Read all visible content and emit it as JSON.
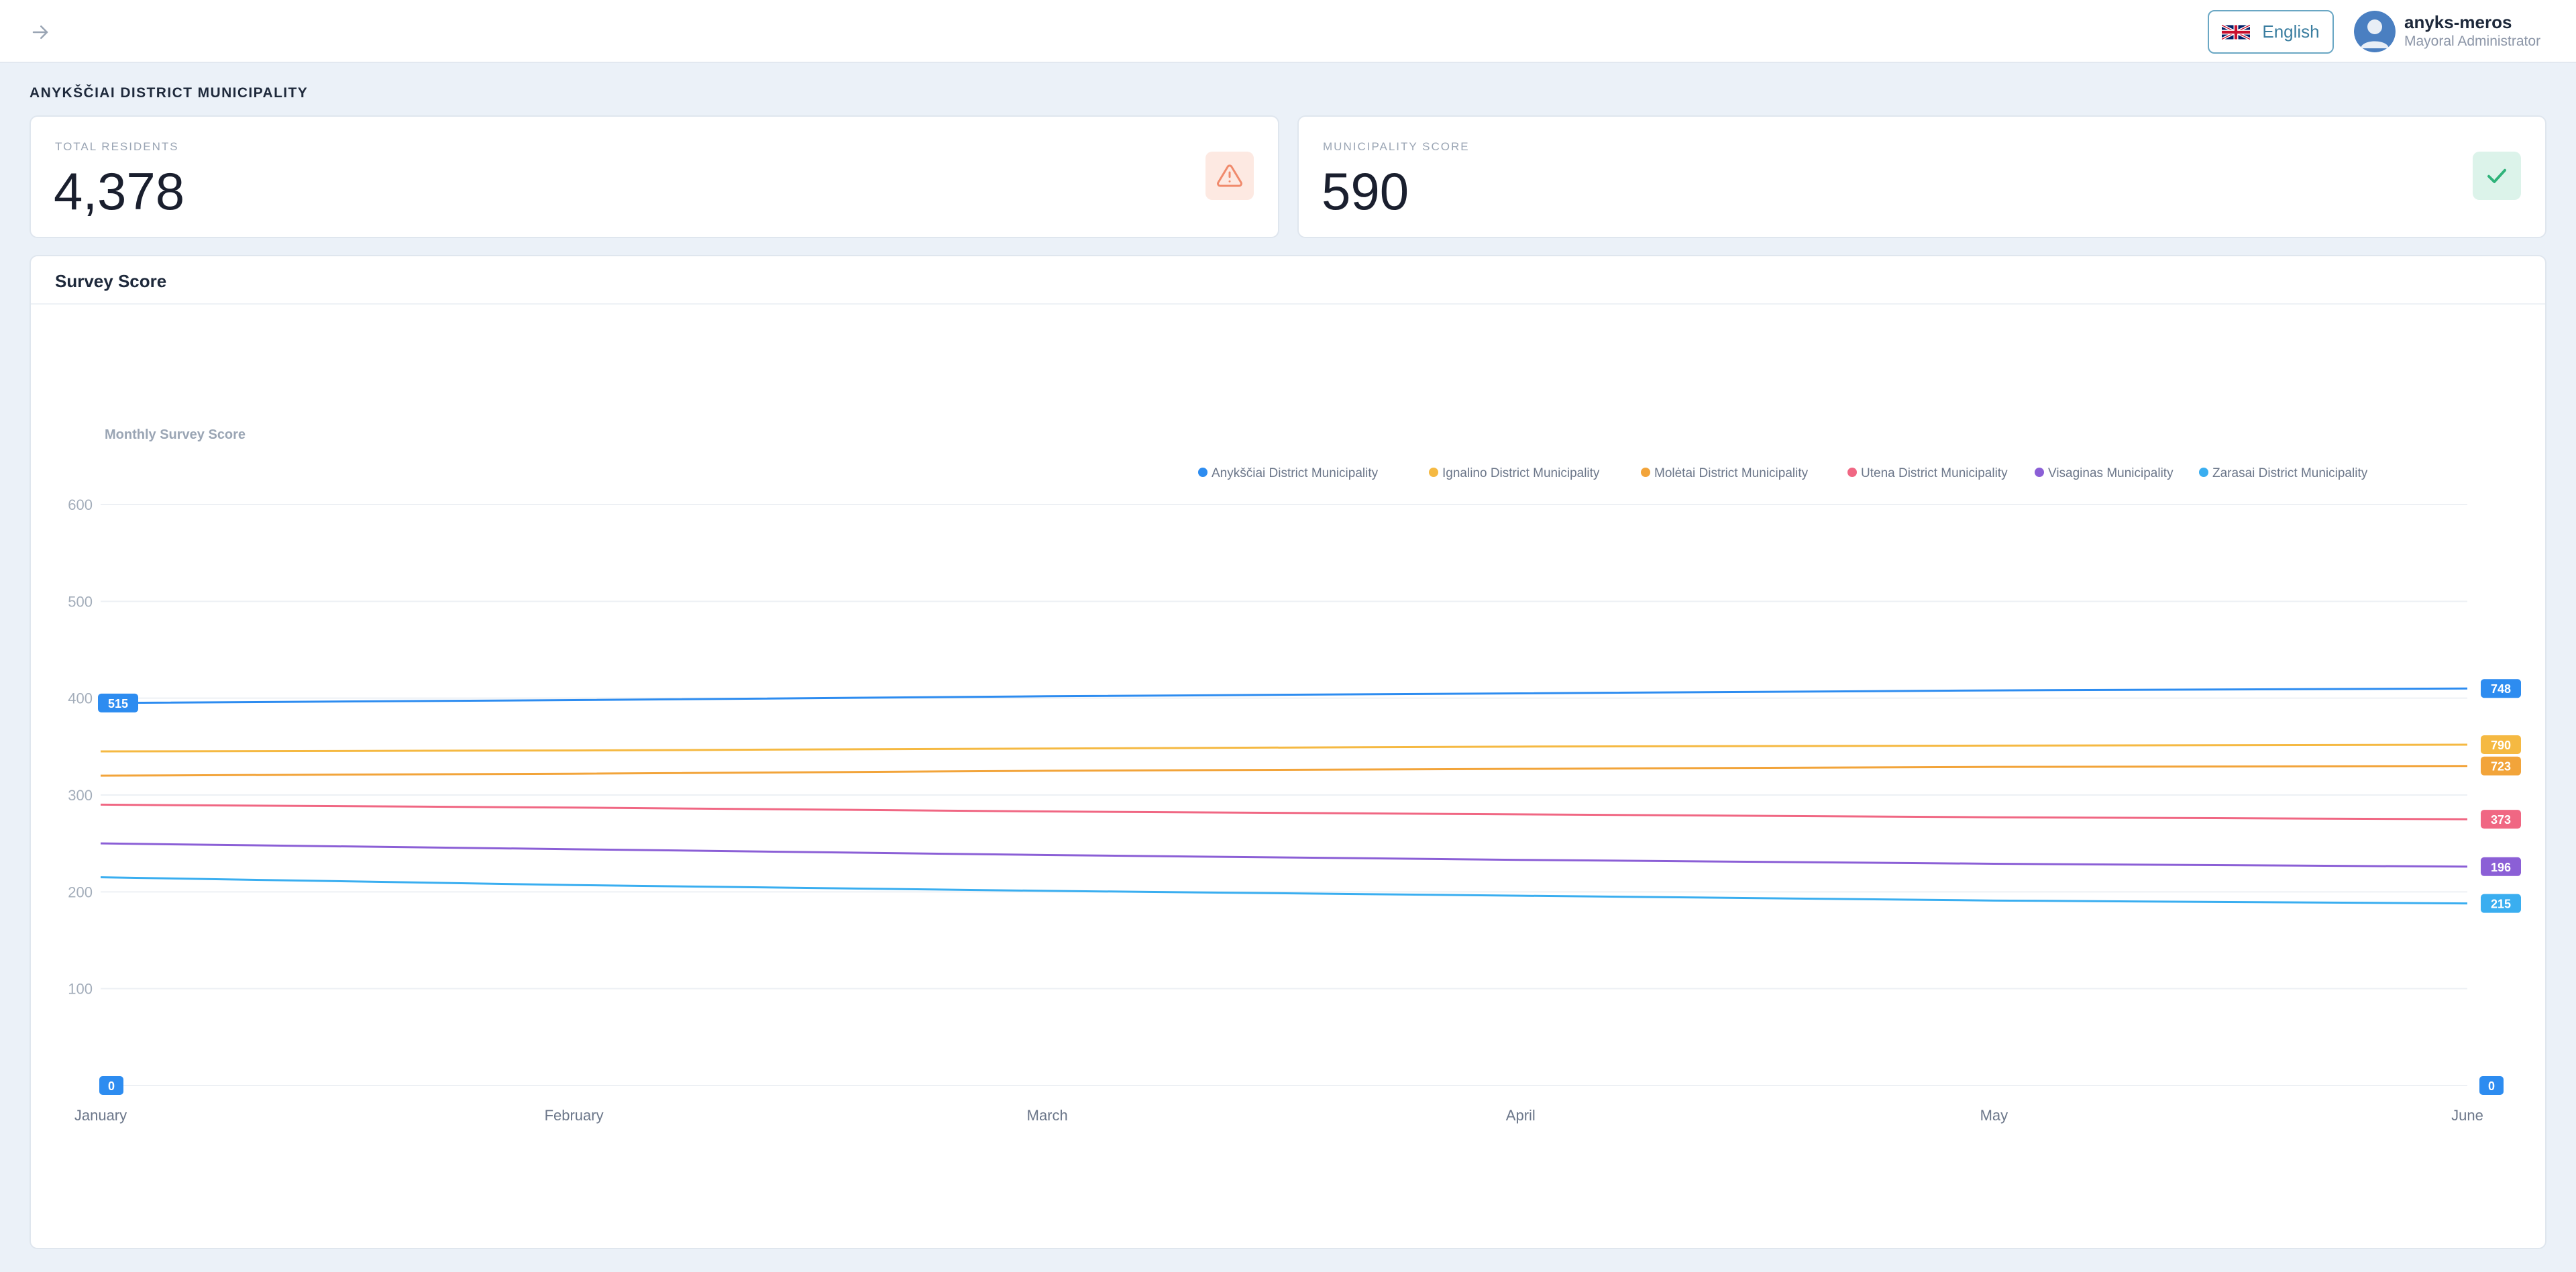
{
  "header": {
    "language_label": "English",
    "user_name": "anyks-meros",
    "user_role": "Mayoral Administrator"
  },
  "page": {
    "title": "ANYKŠČIAI DISTRICT MUNICIPALITY"
  },
  "stats": {
    "residents_label": "TOTAL RESIDENTS",
    "residents_value": "4,378",
    "score_label": "MUNICIPALITY SCORE",
    "score_value": "590"
  },
  "colors": {
    "warning": "#f08a6c",
    "success": "#2fb37a",
    "badge_blue": "#2d8cf0"
  },
  "chart_data": {
    "type": "line",
    "title": "Survey Score",
    "ylabel": "Monthly Survey Score",
    "xlabel": "",
    "categories": [
      "January",
      "February",
      "March",
      "April",
      "May",
      "June"
    ],
    "ylim": [
      0,
      600
    ],
    "yticks": [
      100,
      200,
      300,
      400,
      500,
      600
    ],
    "grid": true,
    "legend_position": "top-right",
    "series": [
      {
        "name": "Anykščiai District Municipality",
        "color": "#2d8cf0",
        "values": [
          395,
          398,
          402,
          405,
          408,
          410
        ],
        "end_label": "748",
        "start_label": "515"
      },
      {
        "name": "Ignalino District Municipality",
        "color": "#f5b942",
        "values": [
          345,
          346,
          348,
          350,
          351,
          352
        ],
        "end_label": "790"
      },
      {
        "name": "Molėtai District Municipality",
        "color": "#f2a43a",
        "values": [
          320,
          322,
          325,
          327,
          329,
          330
        ],
        "end_label": "723"
      },
      {
        "name": "Utena District Municipality",
        "color": "#f06783",
        "values": [
          290,
          287,
          283,
          280,
          277,
          275
        ],
        "end_label": "373"
      },
      {
        "name": "Visaginas Municipality",
        "color": "#8b5fd6",
        "values": [
          250,
          244,
          238,
          233,
          229,
          226
        ],
        "end_label": "196"
      },
      {
        "name": "Zarasai District Municipality",
        "color": "#3aaef0",
        "values": [
          215,
          207,
          201,
          196,
          191,
          188
        ],
        "end_label": "215"
      }
    ],
    "zero_start_label": "0",
    "zero_end_label": "0"
  }
}
